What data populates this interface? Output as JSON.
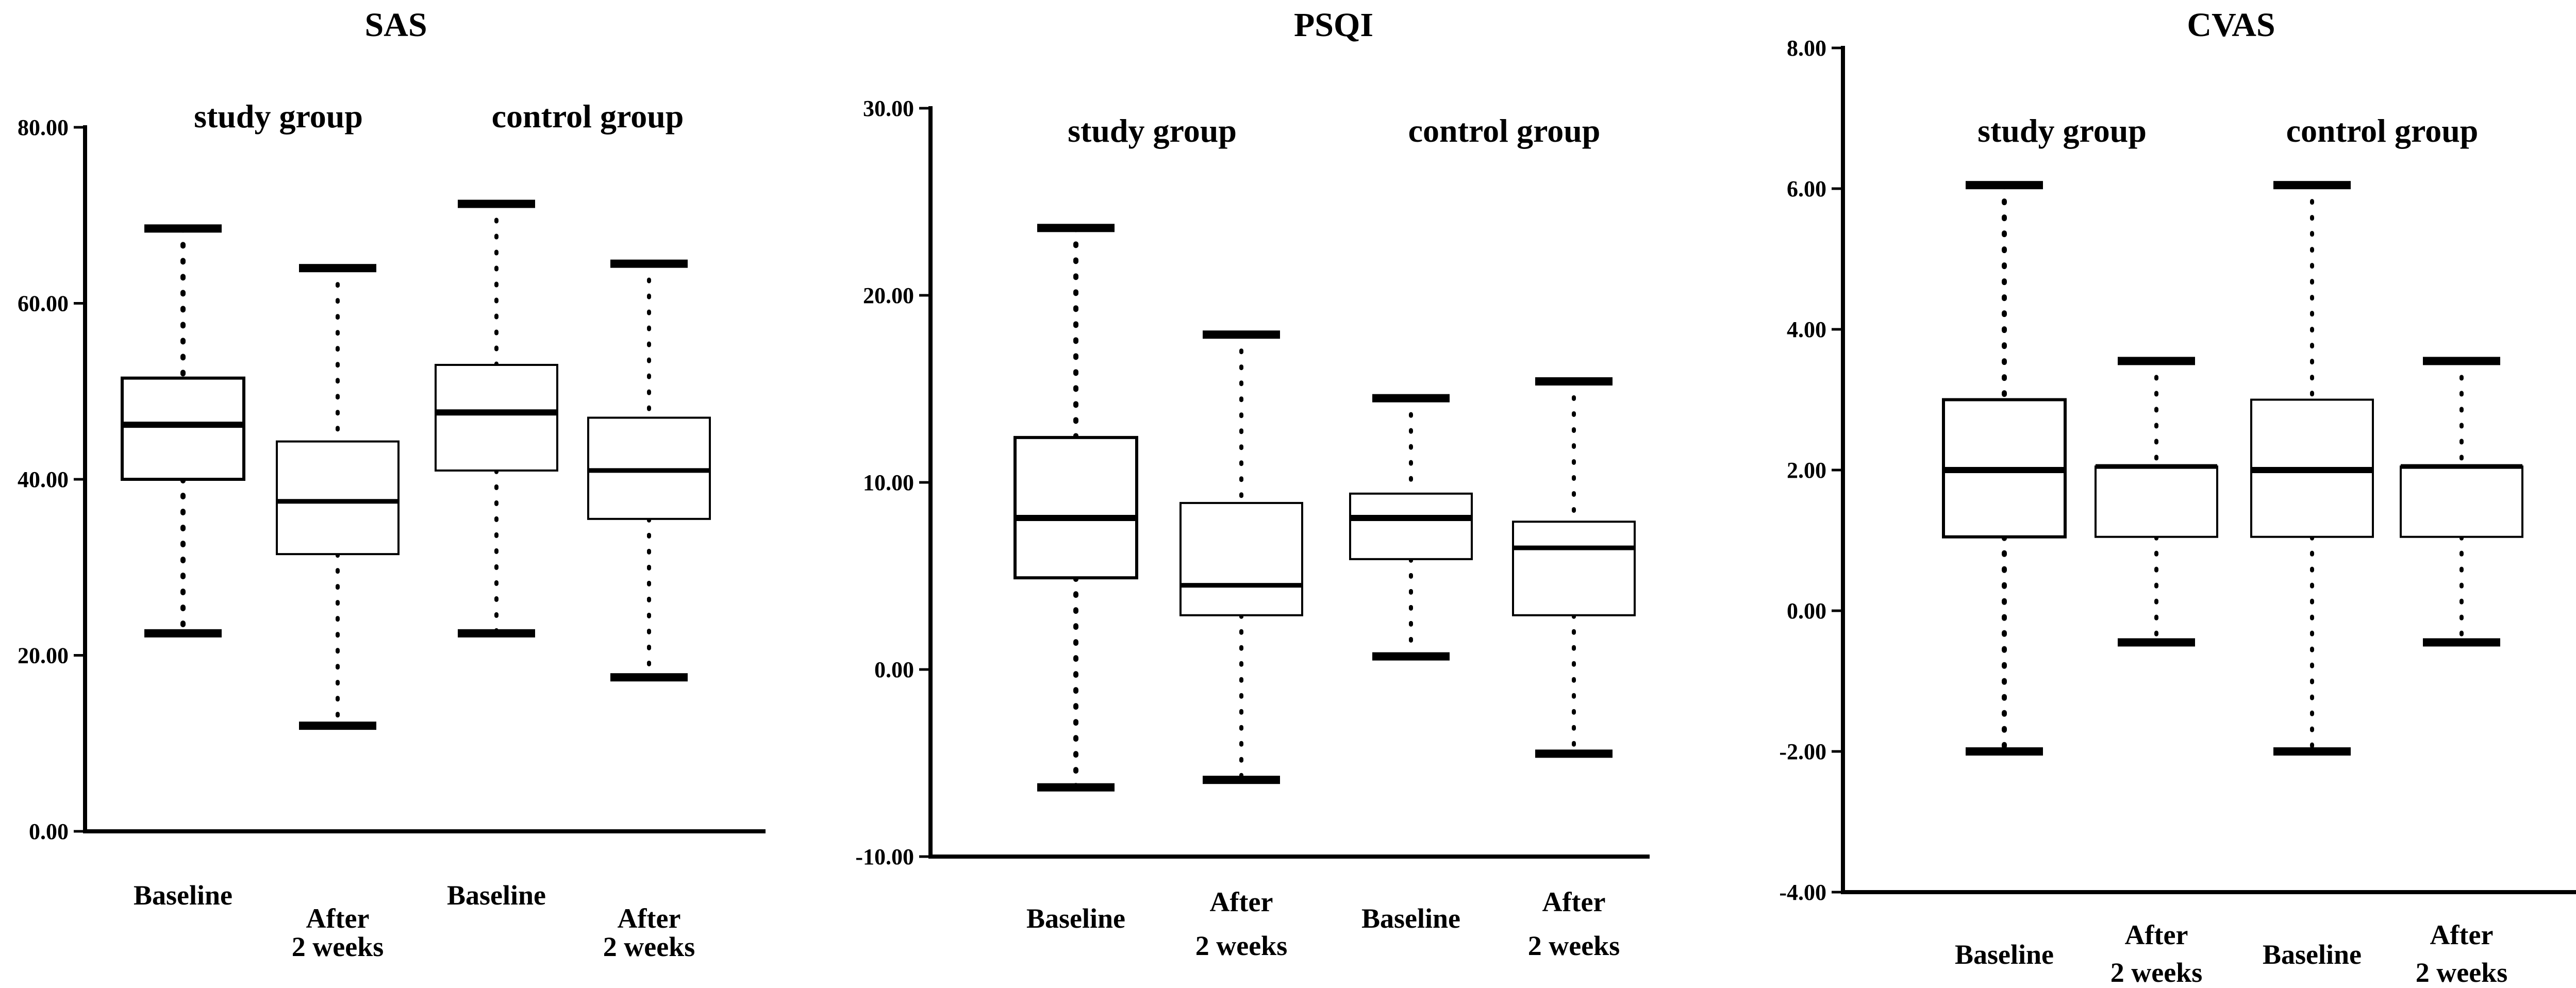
{
  "chart_data": [
    {
      "type": "box",
      "title": "SAS",
      "ylim": [
        0,
        80
      ],
      "yticks": [
        "0.00",
        "20.00",
        "40.00",
        "60.00",
        "80.00"
      ],
      "group_labels": [
        "study group",
        "control group"
      ],
      "categories": [
        {
          "label": [
            "Baseline"
          ]
        },
        {
          "label": [
            "After",
            "2 weeks"
          ]
        },
        {
          "label": [
            "Baseline"
          ]
        },
        {
          "label": [
            "After",
            "2 weeks"
          ]
        }
      ],
      "boxes": [
        {
          "min": 22.5,
          "q1": 40.0,
          "median": 46.2,
          "q3": 51.5,
          "max": 68.5
        },
        {
          "min": 12.0,
          "q1": 31.5,
          "median": 37.5,
          "q3": 44.3,
          "max": 64.0
        },
        {
          "min": 22.5,
          "q1": 41.0,
          "median": 47.6,
          "q3": 53.0,
          "max": 71.3
        },
        {
          "min": 17.5,
          "q1": 35.5,
          "median": 41.0,
          "q3": 47.0,
          "max": 64.5
        }
      ]
    },
    {
      "type": "box",
      "title": "PSQI",
      "ylim": [
        -10,
        30
      ],
      "yticks": [
        "-10.00",
        "0.00",
        "10.00",
        "20.00",
        "30.00"
      ],
      "group_labels": [
        "study group",
        "control group"
      ],
      "categories": [
        {
          "label": [
            "Baseline"
          ]
        },
        {
          "label": [
            "After",
            "2 weeks"
          ]
        },
        {
          "label": [
            "Baseline"
          ]
        },
        {
          "label": [
            "After",
            "2 weeks"
          ]
        }
      ],
      "boxes": [
        {
          "min": -6.3,
          "q1": 4.9,
          "median": 8.1,
          "q3": 12.4,
          "max": 23.6
        },
        {
          "min": -5.9,
          "q1": 2.9,
          "median": 4.5,
          "q3": 8.9,
          "max": 17.9
        },
        {
          "min": 0.7,
          "q1": 5.9,
          "median": 8.1,
          "q3": 9.4,
          "max": 14.5
        },
        {
          "min": -4.5,
          "q1": 2.9,
          "median": 6.5,
          "q3": 7.9,
          "max": 15.4
        }
      ]
    },
    {
      "type": "box",
      "title": "CVAS",
      "ylim": [
        -4,
        8
      ],
      "yticks": [
        "-4.00",
        "-2.00",
        "0.00",
        "2.00",
        "4.00",
        "6.00",
        "8.00"
      ],
      "group_labels": [
        "study group",
        "control group"
      ],
      "categories": [
        {
          "label": [
            "Baseline"
          ]
        },
        {
          "label": [
            "After",
            "2 weeks"
          ]
        },
        {
          "label": [
            "Baseline"
          ]
        },
        {
          "label": [
            "After",
            "2 weeks"
          ]
        }
      ],
      "boxes": [
        {
          "min": -2.0,
          "q1": 1.05,
          "median": 2.0,
          "q3": 3.0,
          "max": 6.05
        },
        {
          "min": -0.45,
          "q1": 1.05,
          "median": 2.05,
          "q3": 2.05,
          "max": 3.55
        },
        {
          "min": -2.0,
          "q1": 1.05,
          "median": 2.0,
          "q3": 3.0,
          "max": 6.05
        },
        {
          "min": -0.45,
          "q1": 1.05,
          "median": 2.05,
          "q3": 2.05,
          "max": 3.55
        }
      ]
    }
  ]
}
